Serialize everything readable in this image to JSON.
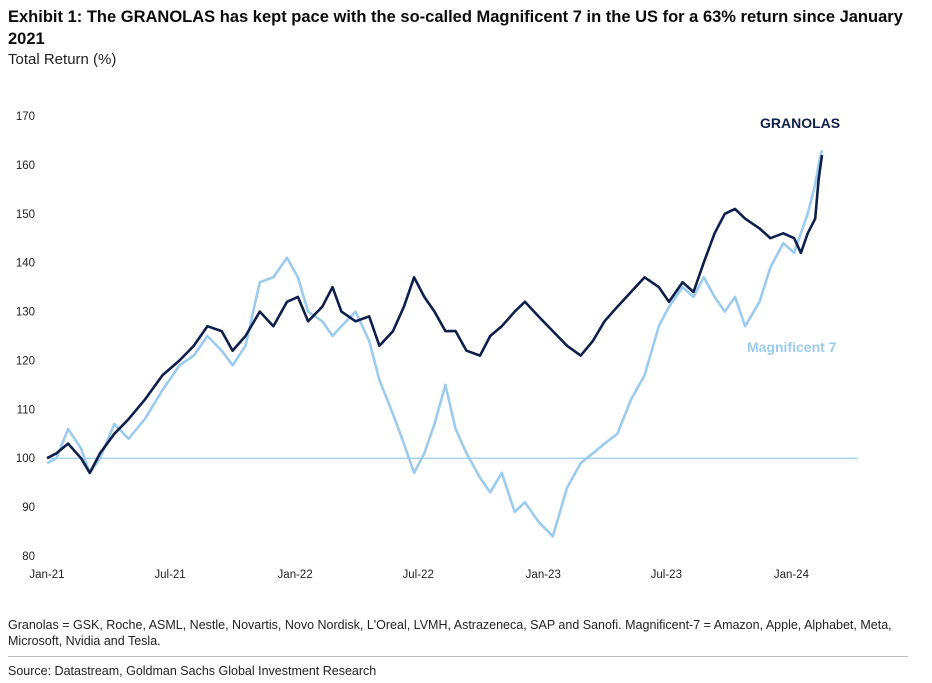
{
  "title": "Exhibit 1: The GRANOLAS has kept pace with the so-called Magnificent 7 in the US for a 63% return since January 2021",
  "subtitle": "Total Return (%)",
  "footnote": "Granolas = GSK, Roche, ASML, Nestle, Novartis, Novo Nordisk, L'Oreal, LVMH, Astrazeneca, SAP and Sanofi. Magnificent-7 = Amazon, Apple, Alphabet, Meta, Microsoft, Nvidia and Tesla.",
  "source": "Source: Datastream, Goldman Sachs Global Investment Research",
  "colors": {
    "granolas": "#0d1f4a",
    "magnificent7": "#9ccbee",
    "reference_line": "#9ccbee"
  },
  "chart_data": {
    "type": "line",
    "x_tick_labels": [
      "Jan-21",
      "Jul-21",
      "Jan-22",
      "Jul-22",
      "Jan-23",
      "Jul-23",
      "Jan-24"
    ],
    "y_ticks": [
      80,
      90,
      100,
      110,
      120,
      130,
      140,
      150,
      160,
      170
    ],
    "ylim": [
      80,
      170
    ],
    "xlim": [
      "2021-01-01",
      "2024-02-15"
    ],
    "grid": false,
    "reference_line": 100,
    "series": [
      {
        "name": "GRANOLAS",
        "color": "#0d1f4a",
        "points": [
          [
            "2021-01-01",
            100
          ],
          [
            "2021-01-15",
            101
          ],
          [
            "2021-02-01",
            103
          ],
          [
            "2021-02-20",
            100
          ],
          [
            "2021-03-05",
            97
          ],
          [
            "2021-03-20",
            101
          ],
          [
            "2021-04-10",
            105
          ],
          [
            "2021-05-01",
            108
          ],
          [
            "2021-05-25",
            112
          ],
          [
            "2021-06-20",
            117
          ],
          [
            "2021-07-15",
            120
          ],
          [
            "2021-08-05",
            123
          ],
          [
            "2021-08-25",
            127
          ],
          [
            "2021-09-15",
            126
          ],
          [
            "2021-10-01",
            122
          ],
          [
            "2021-10-20",
            125
          ],
          [
            "2021-11-10",
            130
          ],
          [
            "2021-11-30",
            127
          ],
          [
            "2021-12-20",
            132
          ],
          [
            "2022-01-05",
            133
          ],
          [
            "2022-01-20",
            128
          ],
          [
            "2022-02-10",
            131
          ],
          [
            "2022-02-25",
            135
          ],
          [
            "2022-03-10",
            130
          ],
          [
            "2022-03-31",
            128
          ],
          [
            "2022-04-20",
            129
          ],
          [
            "2022-05-05",
            123
          ],
          [
            "2022-05-25",
            126
          ],
          [
            "2022-06-10",
            131
          ],
          [
            "2022-06-25",
            137
          ],
          [
            "2022-07-10",
            133
          ],
          [
            "2022-07-25",
            130
          ],
          [
            "2022-08-10",
            126
          ],
          [
            "2022-08-25",
            126
          ],
          [
            "2022-09-10",
            122
          ],
          [
            "2022-09-30",
            121
          ],
          [
            "2022-10-15",
            125
          ],
          [
            "2022-11-01",
            127
          ],
          [
            "2022-11-20",
            130
          ],
          [
            "2022-12-05",
            132
          ],
          [
            "2022-12-25",
            129
          ],
          [
            "2023-01-15",
            126
          ],
          [
            "2023-02-05",
            123
          ],
          [
            "2023-02-25",
            121
          ],
          [
            "2023-03-15",
            124
          ],
          [
            "2023-04-01",
            128
          ],
          [
            "2023-04-20",
            131
          ],
          [
            "2023-05-10",
            134
          ],
          [
            "2023-05-30",
            137
          ],
          [
            "2023-06-20",
            135
          ],
          [
            "2023-07-05",
            132
          ],
          [
            "2023-07-25",
            136
          ],
          [
            "2023-08-10",
            134
          ],
          [
            "2023-08-25",
            140
          ],
          [
            "2023-09-10",
            146
          ],
          [
            "2023-09-25",
            150
          ],
          [
            "2023-10-10",
            151
          ],
          [
            "2023-10-25",
            149
          ],
          [
            "2023-11-15",
            147
          ],
          [
            "2023-12-01",
            145
          ],
          [
            "2023-12-20",
            146
          ],
          [
            "2024-01-05",
            145
          ],
          [
            "2024-01-15",
            142
          ],
          [
            "2024-01-25",
            146
          ],
          [
            "2024-02-05",
            149
          ],
          [
            "2024-02-10",
            157
          ],
          [
            "2024-02-15",
            162
          ]
        ]
      },
      {
        "name": "Magnificent 7",
        "color": "#9ccbee",
        "points": [
          [
            "2021-01-01",
            99
          ],
          [
            "2021-01-15",
            100
          ],
          [
            "2021-02-01",
            106
          ],
          [
            "2021-02-20",
            102
          ],
          [
            "2021-03-05",
            97
          ],
          [
            "2021-03-20",
            100
          ],
          [
            "2021-04-10",
            107
          ],
          [
            "2021-05-01",
            104
          ],
          [
            "2021-05-25",
            108
          ],
          [
            "2021-06-20",
            114
          ],
          [
            "2021-07-15",
            119
          ],
          [
            "2021-08-05",
            121
          ],
          [
            "2021-08-25",
            125
          ],
          [
            "2021-09-15",
            122
          ],
          [
            "2021-10-01",
            119
          ],
          [
            "2021-10-20",
            123
          ],
          [
            "2021-11-10",
            136
          ],
          [
            "2021-11-30",
            137
          ],
          [
            "2021-12-20",
            141
          ],
          [
            "2022-01-05",
            137
          ],
          [
            "2022-01-20",
            130
          ],
          [
            "2022-02-10",
            128
          ],
          [
            "2022-02-25",
            125
          ],
          [
            "2022-03-10",
            127
          ],
          [
            "2022-03-31",
            130
          ],
          [
            "2022-04-20",
            124
          ],
          [
            "2022-05-05",
            116
          ],
          [
            "2022-05-25",
            109
          ],
          [
            "2022-06-10",
            103
          ],
          [
            "2022-06-25",
            97
          ],
          [
            "2022-07-10",
            101
          ],
          [
            "2022-07-25",
            107
          ],
          [
            "2022-08-10",
            115
          ],
          [
            "2022-08-25",
            106
          ],
          [
            "2022-09-10",
            101
          ],
          [
            "2022-09-30",
            96
          ],
          [
            "2022-10-15",
            93
          ],
          [
            "2022-11-01",
            97
          ],
          [
            "2022-11-20",
            89
          ],
          [
            "2022-12-05",
            91
          ],
          [
            "2022-12-25",
            87
          ],
          [
            "2023-01-15",
            84
          ],
          [
            "2023-02-05",
            94
          ],
          [
            "2023-02-25",
            99
          ],
          [
            "2023-03-15",
            101
          ],
          [
            "2023-04-01",
            103
          ],
          [
            "2023-04-20",
            105
          ],
          [
            "2023-05-10",
            112
          ],
          [
            "2023-05-30",
            117
          ],
          [
            "2023-06-20",
            127
          ],
          [
            "2023-07-05",
            131
          ],
          [
            "2023-07-25",
            135
          ],
          [
            "2023-08-10",
            133
          ],
          [
            "2023-08-25",
            137
          ],
          [
            "2023-09-10",
            133
          ],
          [
            "2023-09-25",
            130
          ],
          [
            "2023-10-10",
            133
          ],
          [
            "2023-10-25",
            127
          ],
          [
            "2023-11-15",
            132
          ],
          [
            "2023-12-01",
            139
          ],
          [
            "2023-12-20",
            144
          ],
          [
            "2024-01-05",
            142
          ],
          [
            "2024-01-15",
            146
          ],
          [
            "2024-01-25",
            150
          ],
          [
            "2024-02-05",
            156
          ],
          [
            "2024-02-10",
            160
          ],
          [
            "2024-02-15",
            163
          ]
        ]
      }
    ]
  }
}
